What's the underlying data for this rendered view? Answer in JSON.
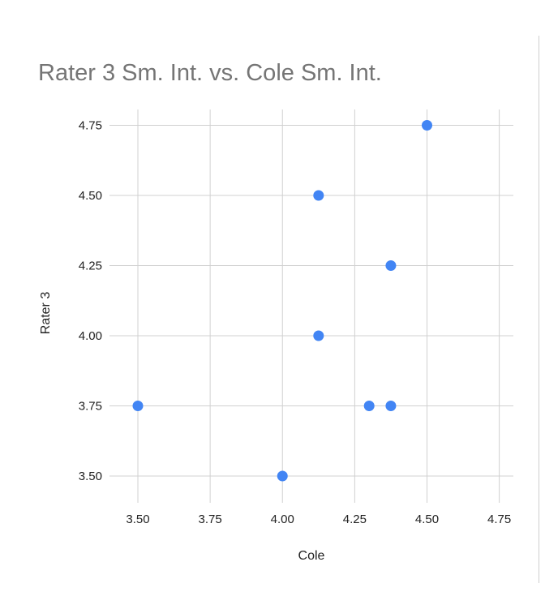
{
  "chart_data": {
    "type": "scatter",
    "title": "Rater 3 Sm. Int. vs. Cole Sm. Int.",
    "xlabel": "Cole",
    "ylabel": "Rater 3",
    "xlim": [
      3.4,
      4.8
    ],
    "ylim": [
      3.4,
      4.8
    ],
    "x_ticks": [
      "3.50",
      "3.75",
      "4.00",
      "4.25",
      "4.50",
      "4.75"
    ],
    "y_ticks": [
      "3.50",
      "3.75",
      "4.00",
      "4.25",
      "4.50",
      "4.75"
    ],
    "grid": true,
    "legend": "none",
    "point_color": "#4285f4",
    "points": [
      {
        "x": 3.5,
        "y": 3.75
      },
      {
        "x": 4.0,
        "y": 3.5
      },
      {
        "x": 4.125,
        "y": 4.0
      },
      {
        "x": 4.125,
        "y": 4.5
      },
      {
        "x": 4.3,
        "y": 3.75
      },
      {
        "x": 4.375,
        "y": 3.75
      },
      {
        "x": 4.375,
        "y": 4.25
      },
      {
        "x": 4.5,
        "y": 4.75
      }
    ]
  }
}
